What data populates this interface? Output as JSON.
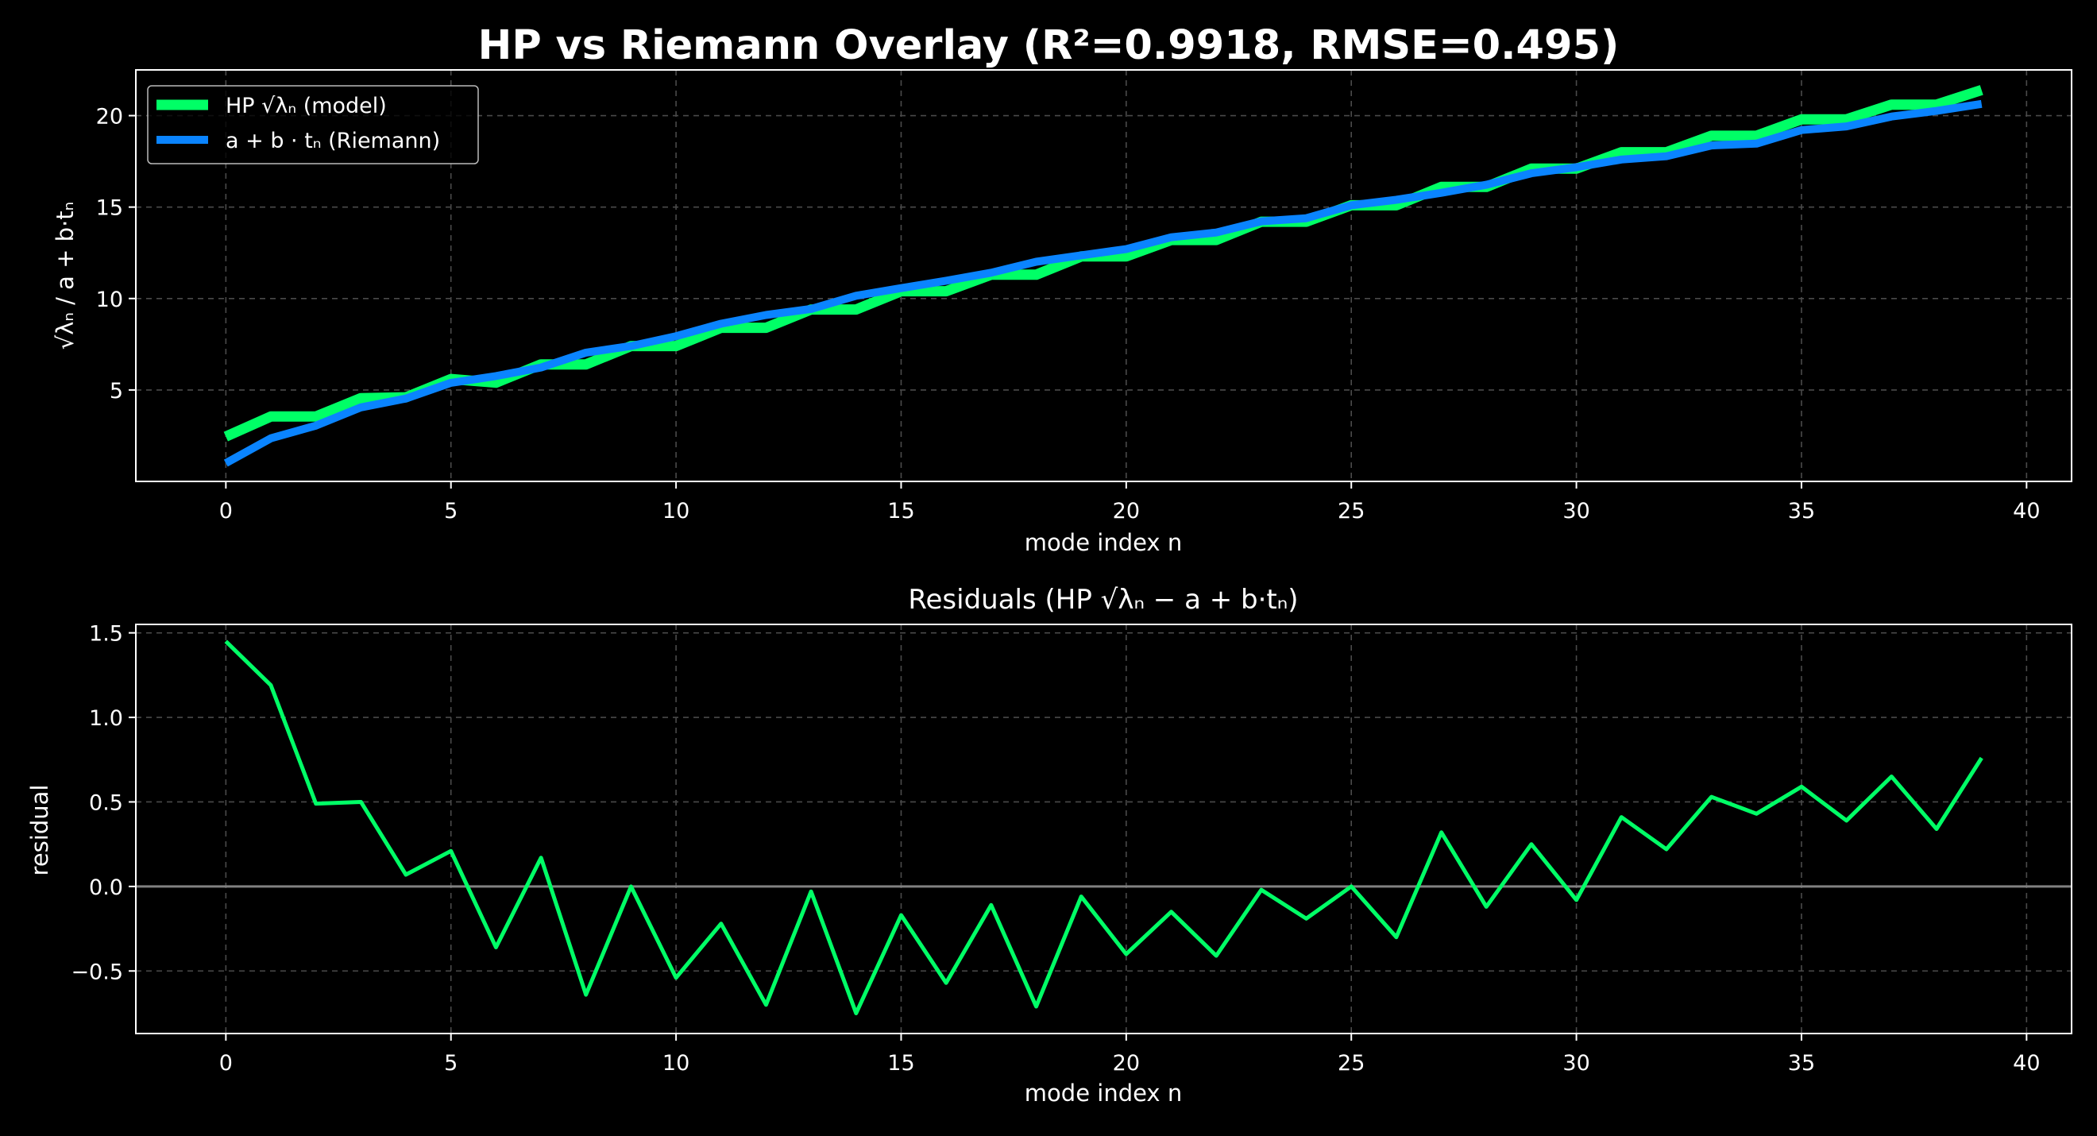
{
  "figure": {
    "title": "HP vs Riemann Overlay  (R²=0.9918, RMSE=0.495)",
    "background": "#000000"
  },
  "chart_data": [
    {
      "type": "line",
      "title": "",
      "xlabel": "mode index n",
      "ylabel": "√λₙ  /  a + b·tₙ",
      "xlim": [
        -2,
        41
      ],
      "ylim": [
        0,
        22.5
      ],
      "xticks": [
        0,
        5,
        10,
        15,
        20,
        25,
        30,
        35,
        40
      ],
      "yticks": [
        5,
        10,
        15,
        20
      ],
      "grid": true,
      "legend_position": "top-left",
      "x": [
        0,
        1,
        2,
        3,
        4,
        5,
        6,
        7,
        8,
        9,
        10,
        11,
        12,
        13,
        14,
        15,
        16,
        17,
        18,
        19,
        20,
        21,
        22,
        23,
        24,
        25,
        26,
        27,
        28,
        29,
        30,
        31,
        32,
        33,
        34,
        35,
        36,
        37,
        38,
        39
      ],
      "series": [
        {
          "name": "HP √λₙ (model)",
          "color": "#00ff66",
          "values": [
            2.45,
            3.55,
            3.55,
            4.55,
            4.6,
            5.6,
            5.4,
            6.4,
            6.4,
            7.4,
            7.4,
            8.4,
            8.4,
            9.4,
            9.4,
            10.4,
            10.4,
            11.3,
            11.3,
            12.3,
            12.3,
            13.2,
            13.2,
            14.2,
            14.2,
            15.1,
            15.1,
            16.1,
            16.1,
            17.1,
            17.1,
            18.0,
            18.0,
            18.9,
            18.9,
            19.8,
            19.8,
            20.6,
            20.6,
            21.4
          ],
          "line_width": 13
        },
        {
          "name": "a + b · tₙ (Riemann)",
          "color": "#0a84ff",
          "values": [
            1.0,
            2.36,
            3.05,
            4.05,
            4.53,
            5.39,
            5.76,
            6.23,
            7.04,
            7.4,
            7.94,
            8.62,
            9.1,
            9.43,
            10.15,
            10.57,
            10.97,
            11.41,
            12.01,
            12.36,
            12.7,
            13.35,
            13.61,
            14.22,
            14.39,
            15.1,
            15.4,
            15.78,
            16.22,
            16.85,
            17.18,
            17.6,
            17.78,
            18.37,
            18.47,
            19.21,
            19.41,
            19.95,
            20.26,
            20.64
          ],
          "line_width": 10
        }
      ]
    },
    {
      "type": "line",
      "title": "Residuals (HP √λₙ  −  a + b·tₙ)",
      "xlabel": "mode index n",
      "ylabel": "residual",
      "xlim": [
        -2,
        41
      ],
      "ylim": [
        -0.87,
        1.55
      ],
      "xticks": [
        0,
        5,
        10,
        15,
        20,
        25,
        30,
        35,
        40
      ],
      "yticks": [
        -0.5,
        0.0,
        0.5,
        1.0,
        1.5
      ],
      "ytick_labels": [
        "−0.5",
        "0.0",
        "0.5",
        "1.0",
        "1.5"
      ],
      "grid": true,
      "reference_line": 0.0,
      "x": [
        0,
        1,
        2,
        3,
        4,
        5,
        6,
        7,
        8,
        9,
        10,
        11,
        12,
        13,
        14,
        15,
        16,
        17,
        18,
        19,
        20,
        21,
        22,
        23,
        24,
        25,
        26,
        27,
        28,
        29,
        30,
        31,
        32,
        33,
        34,
        35,
        36,
        37,
        38,
        39
      ],
      "series": [
        {
          "color": "#00ff66",
          "values": [
            1.45,
            1.19,
            0.49,
            0.5,
            0.07,
            0.21,
            -0.36,
            0.17,
            -0.64,
            0.0,
            -0.54,
            -0.22,
            -0.7,
            -0.03,
            -0.75,
            -0.17,
            -0.57,
            -0.11,
            -0.71,
            -0.06,
            -0.4,
            -0.15,
            -0.41,
            -0.02,
            -0.19,
            0.0,
            -0.3,
            0.32,
            -0.12,
            0.25,
            -0.08,
            0.41,
            0.22,
            0.53,
            0.43,
            0.59,
            0.39,
            0.65,
            0.34,
            0.76
          ],
          "line_width": 5
        }
      ]
    }
  ]
}
